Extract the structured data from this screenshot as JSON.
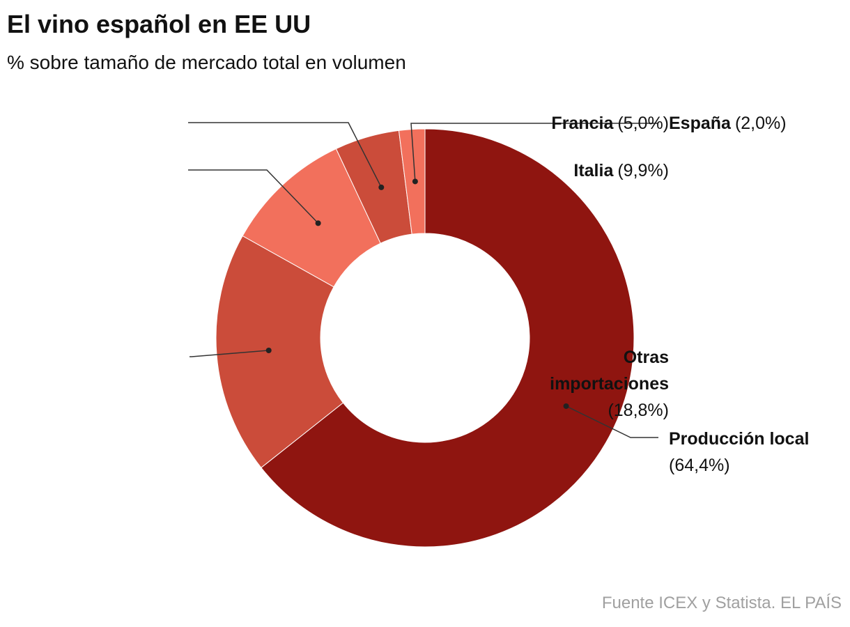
{
  "chart_data": {
    "type": "donut",
    "title": "El vino español en EE UU",
    "subtitle": "% sobre tamaño de mercado total en volumen",
    "source": "Fuente ICEX y Statista. EL PAÍS",
    "categories": [
      "Producción local",
      "Otras importaciones",
      "Italia",
      "Francia",
      "España"
    ],
    "values": [
      64.4,
      18.8,
      9.9,
      5.0,
      2.0
    ],
    "value_labels": [
      "(64,4%)",
      "(18,8%)",
      "(9,9%)",
      "(5,0%)",
      "(2,0%)"
    ],
    "colors": [
      "#8f1510",
      "#cb4c3a",
      "#f2705c",
      "#cb4c3a",
      "#f2705c"
    ]
  }
}
